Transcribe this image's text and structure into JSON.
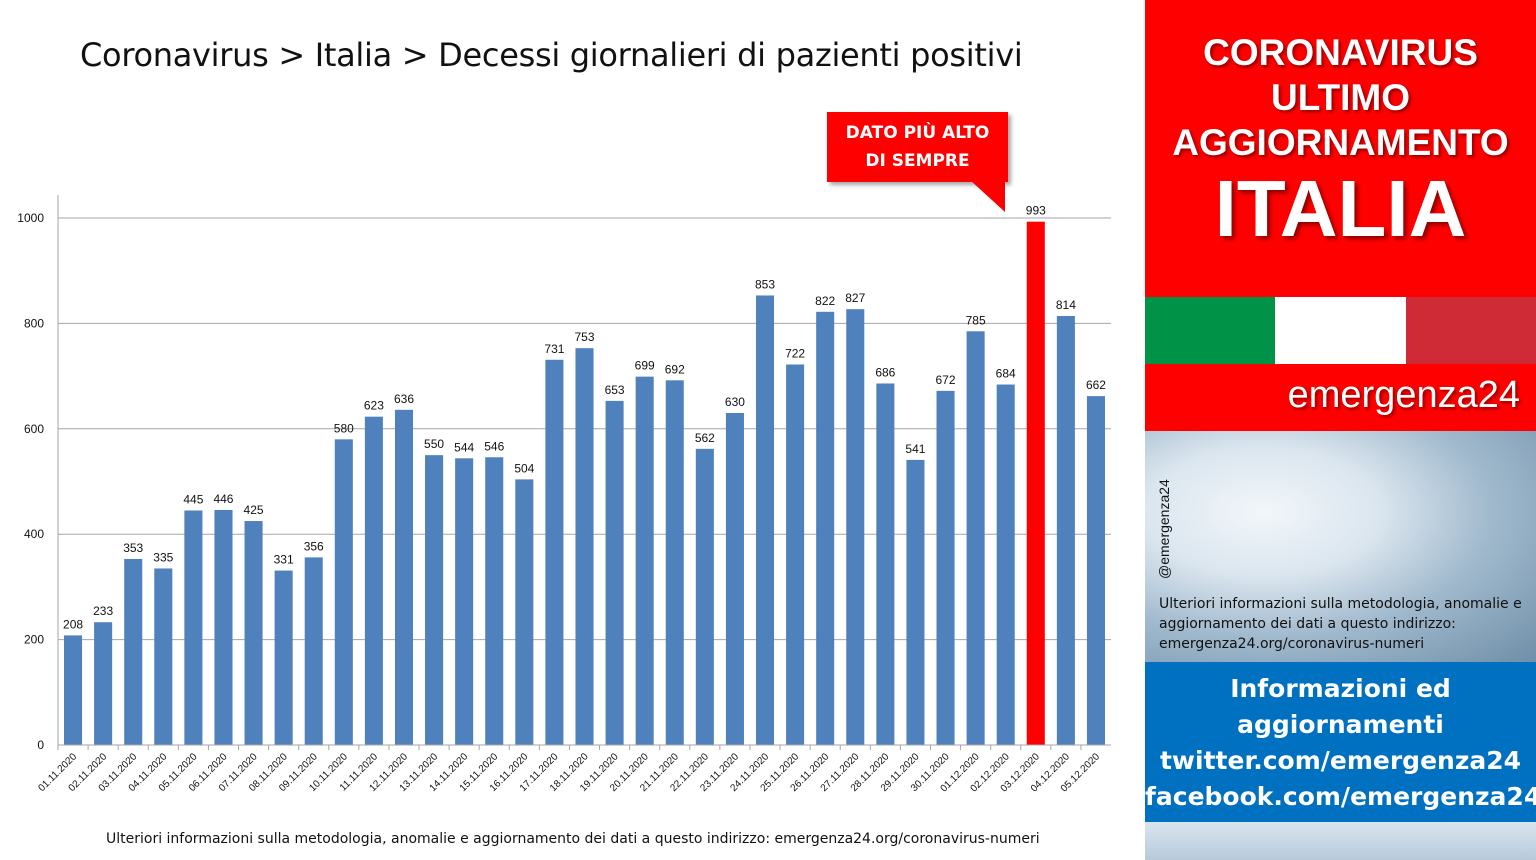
{
  "title": "Coronavirus > Italia > Decessi giornalieri di pazienti positivi",
  "footer_note": "Ulteriori informazioni sulla metodologia, anomalie e aggiornamento dei dati a questo indirizzo: emergenza24.org/coronavirus-numeri",
  "callout": {
    "line1": "DATO PIÙ ALTO",
    "line2": "DI SEMPRE"
  },
  "sidebar": {
    "line1": "CORONAVIRUS",
    "line2": "ULTIMO",
    "line3": "AGGIORNAMENTO",
    "big": "ITALIA",
    "brand": "emergenza24",
    "photo_tag": "@emergenza24",
    "photo_note": "Ulteriori informazioni sulla metodologia, anomalie e aggiornamento dei dati a questo indirizzo: emergenza24.org/coronavirus-numeri",
    "info_lines": [
      "Informazioni ed",
      "aggiornamenti",
      "twitter.com/emergenza24",
      "facebook.com/emergenza24"
    ]
  },
  "colors": {
    "bar": "#4f81bd",
    "highlight": "#ff0000",
    "flag_green": "#009246",
    "flag_white": "#ffffff",
    "flag_red": "#ce2b37",
    "info_blue": "#0070c0"
  },
  "chart_data": {
    "type": "bar",
    "categories": [
      "01.11.2020",
      "02.11.2020",
      "03.11.2020",
      "04.11.2020",
      "05.11.2020",
      "06.11.2020",
      "07.11.2020",
      "08.11.2020",
      "09.11.2020",
      "10.11.2020",
      "11.11.2020",
      "12.11.2020",
      "13.11.2020",
      "14.11.2020",
      "15.11.2020",
      "16.11.2020",
      "17.11.2020",
      "18.11.2020",
      "19.11.2020",
      "20.11.2020",
      "21.11.2020",
      "22.11.2020",
      "23.11.2020",
      "24.11.2020",
      "25.11.2020",
      "26.11.2020",
      "27.11.2020",
      "28.11.2020",
      "29.11.2020",
      "30.11.2020",
      "01.12.2020",
      "02.12.2020",
      "03.12.2020",
      "04.12.2020",
      "05.12.2020"
    ],
    "values": [
      208,
      233,
      353,
      335,
      445,
      446,
      425,
      331,
      356,
      580,
      623,
      636,
      550,
      544,
      546,
      504,
      731,
      753,
      653,
      699,
      692,
      562,
      630,
      853,
      722,
      822,
      827,
      686,
      541,
      672,
      785,
      684,
      993,
      814,
      662
    ],
    "highlight_index": 32,
    "yticks": [
      "0",
      "200",
      "400",
      "600",
      "800",
      "1000"
    ],
    "ylim": [
      0,
      1000
    ],
    "grid": true
  }
}
